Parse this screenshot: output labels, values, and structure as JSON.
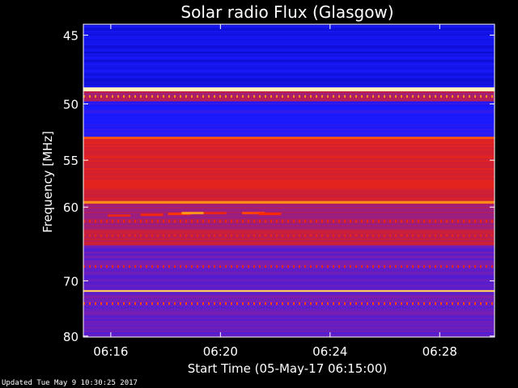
{
  "chart_data": {
    "type": "heatmap",
    "title": "Solar radio Flux (Glasgow)",
    "xlabel": "Start Time (05-May-17 06:15:00)",
    "ylabel": "Frequency [MHz]",
    "x_ticks": [
      "06:16",
      "06:20",
      "06:24",
      "06:28"
    ],
    "x_tick_minutes": [
      1,
      5,
      9,
      13
    ],
    "xlim_minutes": [
      0,
      15
    ],
    "y_ticks": [
      45,
      50,
      55,
      60,
      70,
      80
    ],
    "ylim": [
      44.3,
      80.2
    ],
    "y_scale": "reciprocal",
    "colormap": [
      "#0000a0",
      "#1a1aff",
      "#7a1fb0",
      "#c81e3c",
      "#ff2a00",
      "#ffb020",
      "#ffffcc"
    ],
    "background_level": 0.2,
    "frequency_bands": [
      {
        "from": 44.3,
        "to": 48.7,
        "level": 0.12
      },
      {
        "from": 48.7,
        "to": 49.0,
        "level": 0.97
      },
      {
        "from": 49.0,
        "to": 49.8,
        "level": 0.45
      },
      {
        "from": 49.8,
        "to": 52.8,
        "level": 0.18
      },
      {
        "from": 52.8,
        "to": 53.0,
        "level": 0.72
      },
      {
        "from": 53.0,
        "to": 59.3,
        "level": 0.55
      },
      {
        "from": 59.3,
        "to": 59.6,
        "level": 0.78
      },
      {
        "from": 59.6,
        "to": 62.8,
        "level": 0.42
      },
      {
        "from": 62.8,
        "to": 64.8,
        "level": 0.5
      },
      {
        "from": 64.8,
        "to": 68.8,
        "level": 0.3
      },
      {
        "from": 68.8,
        "to": 71.5,
        "level": 0.28
      },
      {
        "from": 71.5,
        "to": 71.8,
        "level": 0.9
      },
      {
        "from": 71.8,
        "to": 80.2,
        "level": 0.3
      }
    ],
    "dotted_lines": [
      {
        "freq": 49.4,
        "level": 0.8
      },
      {
        "freq": 61.7,
        "level": 0.62
      },
      {
        "freq": 63.5,
        "level": 0.6
      },
      {
        "freq": 67.8,
        "level": 0.62
      },
      {
        "freq": 73.8,
        "level": 0.7
      }
    ],
    "burst": [
      {
        "minute": 1.3,
        "freq": 61.0,
        "level": 0.6
      },
      {
        "minute": 2.5,
        "freq": 60.9,
        "level": 0.62
      },
      {
        "minute": 3.5,
        "freq": 60.8,
        "level": 0.68
      },
      {
        "minute": 4.0,
        "freq": 60.7,
        "level": 0.8
      },
      {
        "minute": 4.8,
        "freq": 60.7,
        "level": 0.6
      },
      {
        "minute": 6.2,
        "freq": 60.7,
        "level": 0.7
      },
      {
        "minute": 6.8,
        "freq": 60.8,
        "level": 0.65
      }
    ]
  },
  "footer": {
    "updated": "Updated Tue May  9 10:30:25 2017"
  }
}
